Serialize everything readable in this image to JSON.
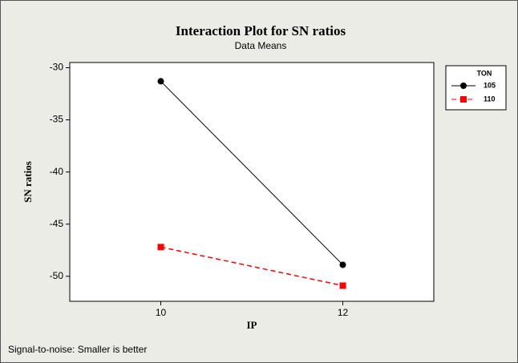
{
  "chart_data": {
    "type": "line",
    "title": "Interaction Plot for SN ratios",
    "subtitle": "Data Means",
    "xlabel": "IP",
    "ylabel": "SN ratios",
    "footnote": "Signal-to-noise: Smaller is better",
    "legend_title": "TON",
    "legend": "right",
    "x": [
      10,
      12
    ],
    "xlim": [
      9,
      13
    ],
    "xticks": [
      10,
      12
    ],
    "ylim": [
      -52.4,
      -29.5
    ],
    "yticks": [
      -30,
      -35,
      -40,
      -45,
      -50
    ],
    "series": [
      {
        "name": "105",
        "color": "#000000",
        "line_style": "solid",
        "marker": "circle",
        "values": [
          -31.3,
          -48.9
        ]
      },
      {
        "name": "110",
        "color": "#ff0000",
        "line_style": "dashed",
        "marker": "square",
        "values": [
          -47.2,
          -50.9
        ]
      }
    ]
  }
}
